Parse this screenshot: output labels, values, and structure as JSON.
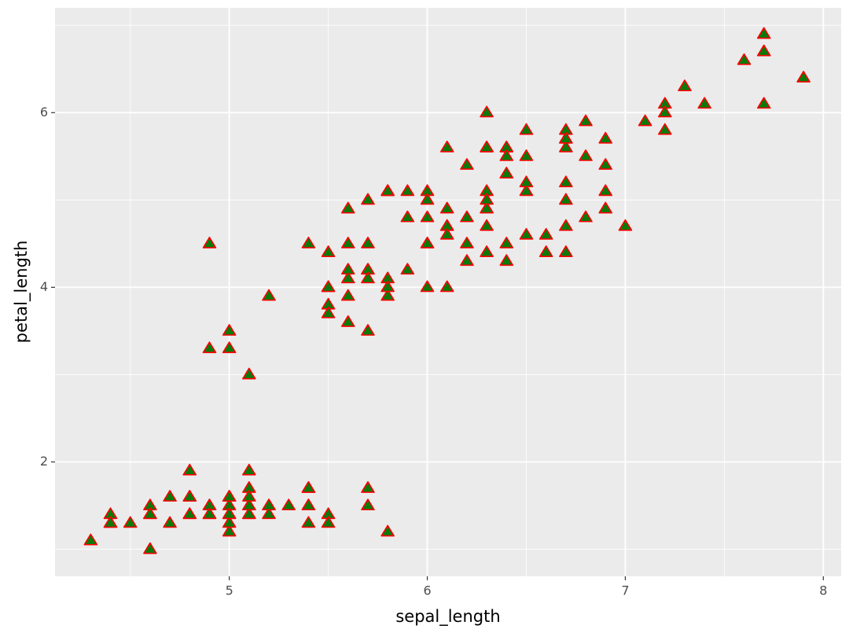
{
  "chart_data": {
    "type": "scatter",
    "xlabel": "sepal_length",
    "ylabel": "petal_length",
    "x": [
      5.1,
      4.9,
      4.7,
      4.6,
      5.0,
      5.4,
      4.6,
      5.0,
      4.4,
      4.9,
      5.4,
      4.8,
      4.8,
      4.3,
      5.8,
      5.7,
      5.4,
      5.1,
      5.7,
      5.1,
      5.4,
      5.1,
      4.6,
      5.1,
      4.8,
      5.0,
      5.0,
      5.2,
      5.2,
      4.7,
      4.8,
      5.4,
      5.2,
      5.5,
      4.9,
      5.0,
      5.5,
      4.9,
      4.4,
      5.1,
      5.0,
      4.5,
      4.4,
      5.0,
      5.1,
      4.8,
      5.1,
      4.6,
      5.3,
      5.0,
      7.0,
      6.4,
      6.9,
      5.5,
      6.5,
      5.7,
      6.3,
      4.9,
      6.6,
      5.2,
      5.0,
      5.9,
      6.0,
      6.1,
      5.6,
      6.7,
      5.6,
      5.8,
      6.2,
      5.6,
      5.9,
      6.1,
      6.3,
      6.1,
      6.4,
      6.6,
      6.8,
      6.7,
      6.0,
      5.7,
      5.5,
      5.5,
      5.8,
      6.0,
      5.4,
      6.0,
      6.7,
      6.3,
      5.6,
      5.5,
      5.5,
      6.1,
      5.8,
      5.0,
      5.6,
      5.7,
      5.7,
      6.2,
      5.1,
      5.7,
      6.3,
      5.8,
      7.1,
      6.3,
      6.5,
      7.6,
      4.9,
      7.3,
      6.7,
      7.2,
      6.5,
      6.4,
      6.8,
      5.7,
      5.8,
      6.4,
      6.5,
      7.7,
      7.7,
      6.0,
      6.9,
      5.6,
      7.7,
      6.3,
      6.7,
      7.2,
      6.2,
      6.1,
      6.4,
      7.2,
      7.4,
      7.9,
      6.4,
      6.3,
      6.1,
      7.7,
      6.3,
      6.4,
      6.0,
      6.9,
      6.7,
      6.9,
      5.8,
      6.8,
      6.7,
      6.7,
      6.3,
      6.5,
      6.2,
      5.9
    ],
    "y": [
      1.4,
      1.4,
      1.3,
      1.5,
      1.4,
      1.7,
      1.4,
      1.5,
      1.4,
      1.5,
      1.5,
      1.6,
      1.4,
      1.1,
      1.2,
      1.5,
      1.3,
      1.4,
      1.7,
      1.5,
      1.7,
      1.5,
      1.0,
      1.7,
      1.9,
      1.6,
      1.6,
      1.5,
      1.4,
      1.6,
      1.6,
      1.5,
      1.5,
      1.4,
      1.5,
      1.2,
      1.3,
      1.4,
      1.3,
      1.5,
      1.3,
      1.3,
      1.3,
      1.6,
      1.9,
      1.4,
      1.6,
      1.4,
      1.5,
      1.4,
      4.7,
      4.5,
      4.9,
      4.0,
      4.6,
      4.5,
      4.7,
      3.3,
      4.6,
      3.9,
      3.5,
      4.2,
      4.0,
      4.7,
      3.6,
      4.4,
      4.5,
      4.1,
      4.5,
      3.9,
      4.8,
      4.0,
      4.9,
      4.7,
      4.3,
      4.4,
      4.8,
      5.0,
      4.5,
      3.5,
      3.8,
      3.7,
      3.9,
      5.1,
      4.5,
      4.5,
      4.7,
      4.4,
      4.1,
      4.0,
      4.4,
      4.6,
      4.0,
      3.3,
      4.2,
      4.2,
      4.2,
      4.3,
      3.0,
      4.1,
      6.0,
      5.1,
      5.9,
      5.6,
      5.8,
      6.6,
      4.5,
      6.3,
      5.8,
      6.1,
      5.1,
      5.3,
      5.5,
      5.0,
      5.1,
      5.3,
      5.5,
      6.7,
      6.9,
      5.0,
      5.7,
      4.9,
      6.7,
      4.9,
      5.7,
      6.0,
      4.8,
      4.9,
      5.6,
      5.8,
      6.1,
      6.4,
      5.6,
      5.1,
      5.6,
      6.1,
      5.6,
      5.5,
      4.8,
      5.4,
      5.6,
      5.1,
      5.1,
      5.9,
      5.7,
      5.2,
      5.0,
      5.2,
      5.4,
      5.1
    ],
    "color": "#0b7a0b",
    "edgecolor": "#ff0000",
    "xlim": [
      4.12,
      8.09
    ],
    "ylim": [
      0.69,
      7.2
    ],
    "xticks": [
      5,
      6,
      7,
      8
    ],
    "yticks": [
      2,
      4,
      6
    ],
    "x_minor_ticks": [
      4.5,
      5.5,
      6.5,
      7.5
    ],
    "y_minor_ticks": [
      1,
      3,
      5,
      7
    ],
    "grid": true
  }
}
